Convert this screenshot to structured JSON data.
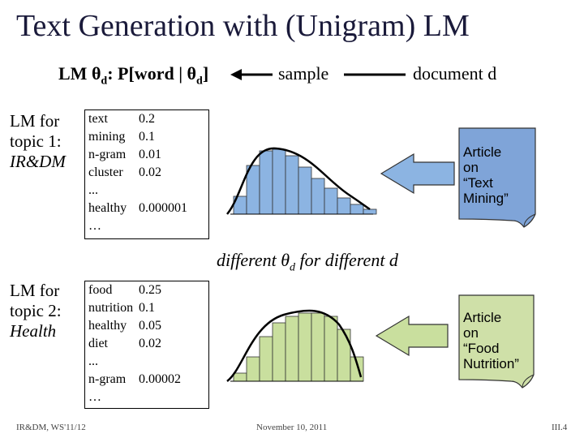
{
  "slide": {
    "title": "Text Generation with (Unigram) LM",
    "lm_label_prefix": "LM θ",
    "lm_label_sub": "d",
    "lm_label_mid": ": P[word | θ",
    "lm_label_sub2": "d",
    "lm_label_end": "]",
    "sample_label": "sample",
    "document_label": "document d",
    "middle_text_prefix": "different θ",
    "middle_text_sub": "d",
    "middle_text_suffix": "  for different d"
  },
  "topic1": {
    "line1": "LM for",
    "line2": "topic 1:",
    "line3": "IR&DM",
    "rows": [
      {
        "word": "text",
        "prob": "0.2"
      },
      {
        "word": "mining",
        "prob": "0.1"
      },
      {
        "word": "n-gram",
        "prob": "0.01"
      },
      {
        "word": "cluster",
        "prob": "0.02"
      },
      {
        "word": "...",
        "prob": ""
      },
      {
        "word": "healthy",
        "prob": "0.000001"
      },
      {
        "word": "…",
        "prob": ""
      }
    ],
    "doc_lines": [
      "Article",
      "on",
      "“Text",
      "Mining”"
    ],
    "doc_color": "#7fa4d8"
  },
  "topic2": {
    "line1": "LM for",
    "line2": "topic 2:",
    "line3": "Health",
    "rows": [
      {
        "word": "food",
        "prob": "0.25"
      },
      {
        "word": "nutrition",
        "prob": "0.1"
      },
      {
        "word": "healthy",
        "prob": "0.05"
      },
      {
        "word": "diet",
        "prob": "0.02"
      },
      {
        "word": "...",
        "prob": ""
      },
      {
        "word": "n-gram",
        "prob": "0.00002"
      },
      {
        "word": "…",
        "prob": ""
      }
    ],
    "doc_lines": [
      "Article",
      "on",
      "“Food",
      "Nutrition”"
    ],
    "doc_color": "#cfe0a8"
  },
  "footer": {
    "left": "IR&DM, WS'11/12",
    "center": "November 10, 2011",
    "right": "III.4"
  },
  "colors": {
    "hist_blue": "#8cb4e2",
    "hist_green": "#c9df9e",
    "arrow_blue": "#8cb4e2",
    "arrow_green": "#c9df9e"
  }
}
